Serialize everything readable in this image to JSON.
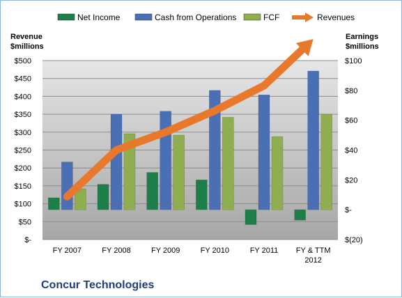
{
  "chart_data": {
    "type": "bar",
    "title": "Concur Technologies",
    "categories": [
      "FY 2007",
      "FY 2008",
      "FY 2009",
      "FY 2010",
      "FY 2011",
      "FY & TTM 2012"
    ],
    "ylabel_left": [
      "Revenue",
      "$millions"
    ],
    "ylabel_right": [
      "Earnings",
      "$millions"
    ],
    "ylim_left": [
      0,
      500
    ],
    "ylim_right": [
      -20,
      100
    ],
    "yticks_left": [
      "$-",
      "$50",
      "$100",
      "$150",
      "$200",
      "$250",
      "$300",
      "$350",
      "$400",
      "$450",
      "$500"
    ],
    "yticks_right": [
      "$(20)",
      "$-",
      "$20",
      "$40",
      "$60",
      "$80",
      "$100"
    ],
    "grid": true,
    "legend_position": "top",
    "series": [
      {
        "name": "Net Income",
        "axis": "right",
        "kind": "bar",
        "color": "#1e7e4a",
        "values": [
          8,
          17,
          25,
          20,
          -10,
          -7
        ]
      },
      {
        "name": "Cash from Operations",
        "axis": "right",
        "kind": "bar",
        "color": "#4a6fb5",
        "values": [
          32,
          64,
          66,
          80,
          77,
          93
        ]
      },
      {
        "name": "FCF",
        "axis": "right",
        "kind": "bar",
        "color": "#8fae4f",
        "values": [
          14,
          51,
          50,
          62,
          49,
          64
        ]
      },
      {
        "name": "Revenues",
        "axis": "left",
        "kind": "line",
        "color": "#e8782b",
        "values": [
          120,
          250,
          300,
          360,
          430,
          560
        ]
      }
    ]
  }
}
